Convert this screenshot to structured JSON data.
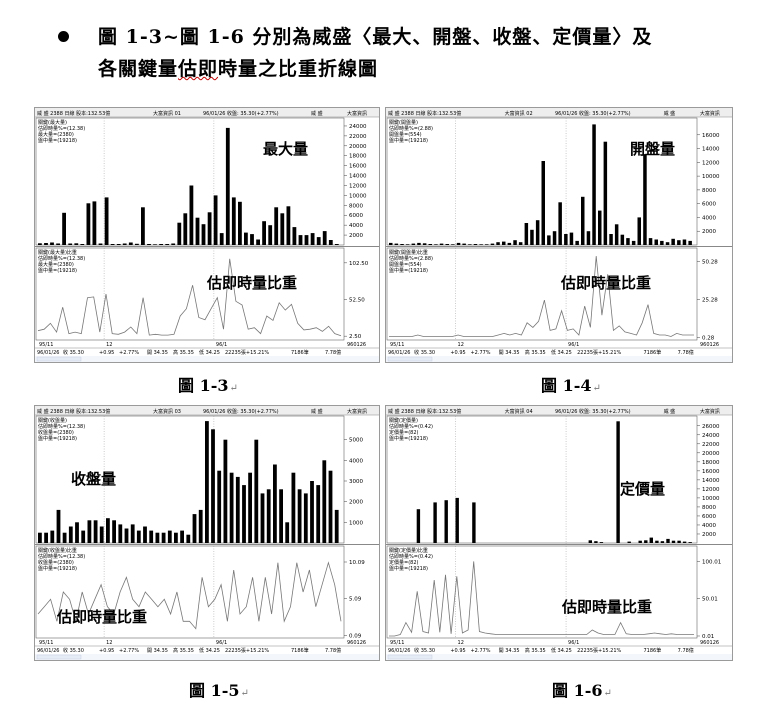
{
  "heading": {
    "line1": "圖 1-3~圖 1-6 分別為威盛〈最大、開盤、收盤、定價量〉及",
    "line2_pre": "各關鍵量",
    "line2_underlined": "估即",
    "line2_post": "時量之比重折線圖"
  },
  "panels": [
    {
      "caption": "圖 1-3",
      "topbar": [
        "威 盛 2388 日線 股本:132.53億",
        "大富資訊 01",
        "96/01/26 收盤: 35.30(+2.77%)",
        "威 盛",
        "大富資訊"
      ],
      "upper_legend": [
        "關鍵(最大量)",
        "估即時量%=(12.38)",
        "最大量=(2380)",
        "盤中量=(19218)"
      ],
      "upper_label": "最大量",
      "upper_ticks": [
        "24000",
        "22000",
        "20000",
        "18000",
        "16000",
        "14000",
        "12000",
        "10000",
        "8000",
        "6000",
        "4000",
        "2000"
      ],
      "upper_max": 25000,
      "lower_legend": [
        "關鍵(最大量)比重",
        "估即時量%=(12.38)",
        "最大量=(2380)",
        "盤中量=(19218)"
      ],
      "lower_label": "估即時量比重",
      "lower_ticks": [
        "102.50",
        "52.50",
        "2.50"
      ],
      "lower_max": 120,
      "date_labels": [
        "95/11",
        "12",
        "96/1",
        "960126"
      ],
      "bottom_bar": [
        "96/01/26",
        "收 35.30",
        "+0.95",
        "+2.77%",
        "開 34.35",
        "高 35.35",
        "低 34.25",
        "22235張+15.21%",
        "7186筆",
        "7.78億"
      ],
      "upper_bars": [
        350,
        400,
        500,
        300,
        6500,
        300,
        350,
        200,
        8400,
        8800,
        300,
        9600,
        200,
        200,
        300,
        500,
        250,
        7600,
        200,
        150,
        200,
        200,
        300,
        4500,
        6400,
        12000,
        5500,
        4200,
        6600,
        10000,
        2400,
        23600,
        9600,
        8700,
        2500,
        2200,
        1100,
        4800,
        4000,
        7600,
        6400,
        7800,
        3600,
        2000,
        2000,
        2400,
        1600,
        2800,
        1000,
        200
      ],
      "lower_series": [
        10,
        12,
        20,
        8,
        42,
        6,
        8,
        6,
        55,
        56,
        8,
        60,
        6,
        5,
        8,
        15,
        6,
        55,
        4,
        5,
        4,
        4,
        5,
        30,
        40,
        72,
        28,
        25,
        40,
        55,
        12,
        108,
        50,
        45,
        12,
        14,
        6,
        30,
        24,
        48,
        38,
        46,
        20,
        11,
        12,
        14,
        9,
        16,
        6,
        3
      ]
    },
    {
      "caption": "圖 1-4",
      "topbar": [
        "威 盛 2388 日線 股本:132.53億",
        "大富資訊 02",
        "96/01/26 收盤: 35.30(+2.77%)",
        "威 盛",
        "大富資訊"
      ],
      "upper_legend": [
        "關鍵(開盤量)",
        "估即時量%=(2.88)",
        "開盤量=(554)",
        "盤中量=(19218)"
      ],
      "upper_label": "開盤量",
      "upper_ticks": [
        "16000",
        "14000",
        "12000",
        "10000",
        "8000",
        "6000",
        "4000",
        "2000"
      ],
      "upper_max": 18000,
      "lower_legend": [
        "關鍵(開盤量)比重",
        "估即時量%=(2.88)",
        "開盤量=(554)",
        "盤中量=(19218)"
      ],
      "lower_label": "估即時量比重",
      "lower_ticks": [
        "50.28",
        "25.28",
        "0.28"
      ],
      "lower_max": 58,
      "date_labels": [
        "95/11",
        "12",
        "96/1",
        "960126"
      ],
      "bottom_bar": [
        "96/01/26",
        "收 35.30",
        "+0.95",
        "+2.77%",
        "開 34.35",
        "高 35.35",
        "低 34.25",
        "22235張+15.21%",
        "7186筆",
        "7.78億"
      ],
      "upper_bars": [
        300,
        200,
        150,
        100,
        200,
        300,
        250,
        150,
        100,
        200,
        150,
        100,
        300,
        200,
        100,
        150,
        100,
        100,
        200,
        400,
        500,
        300,
        700,
        400,
        3200,
        2200,
        3600,
        12200,
        1400,
        2000,
        6200,
        1600,
        1800,
        600,
        7000,
        2000,
        17500,
        5000,
        15000,
        1600,
        3000,
        1500,
        1000,
        600,
        4000,
        13200,
        1000,
        800,
        600,
        400,
        900,
        700,
        800,
        600
      ],
      "lower_series": [
        1,
        1,
        1,
        1,
        1,
        2,
        1,
        1,
        1,
        1,
        1,
        1,
        2,
        1,
        1,
        1,
        1,
        1,
        1,
        2,
        3,
        2,
        3,
        2,
        10,
        7,
        11,
        25,
        5,
        6,
        18,
        5,
        6,
        2,
        21,
        7,
        54,
        15,
        42,
        5,
        8,
        4,
        3,
        2,
        10,
        22,
        3,
        2,
        2,
        1,
        3,
        2,
        2,
        2
      ]
    },
    {
      "caption": "圖 1-5",
      "topbar": [
        "威 盛 2388 日線 股本:132.53億",
        "大富資訊 03",
        "96/01/26 收盤: 35.30(+2.77%)",
        "威 盛",
        "大富資訊"
      ],
      "upper_legend": [
        "關鍵(收盤量)",
        "估即時量%=(12.38)",
        "收盤量=(2380)",
        "盤中量=(19218)"
      ],
      "upper_label": "收盤量",
      "upper_ticks": [
        "5000",
        "4000",
        "3000",
        "2000",
        "1000"
      ],
      "upper_max": 6000,
      "lower_legend": [
        "關鍵(收盤量)比重",
        "估即時量%=(12.38)",
        "收盤量=(2380)",
        "盤中量=(19218)"
      ],
      "lower_label": "估即時量比重",
      "lower_ticks": [
        "10.09",
        "5.09",
        "0.09"
      ],
      "lower_max": 12,
      "date_labels": [
        "95/11",
        "12",
        "96/1",
        "960126"
      ],
      "bottom_bar": [
        "96/01/26",
        "收 35.30",
        "+0.95",
        "+2.77%",
        "開 34.35",
        "高 35.35",
        "低 34.25",
        "22235張+15.21%",
        "7186筆",
        "7.78億"
      ],
      "upper_bars": [
        500,
        500,
        600,
        1600,
        500,
        800,
        1000,
        600,
        1100,
        1100,
        800,
        1200,
        1100,
        900,
        700,
        900,
        600,
        800,
        600,
        500,
        500,
        600,
        500,
        600,
        400,
        1400,
        1600,
        5900,
        5500,
        3500,
        5000,
        3400,
        3200,
        2800,
        3400,
        5000,
        2400,
        2600,
        3800,
        2600,
        1000,
        3400,
        2600,
        2400,
        3000,
        2800,
        4000,
        3500,
        1600
      ],
      "lower_series": [
        3,
        4,
        5,
        2,
        6,
        5,
        2,
        6,
        3,
        5,
        7,
        4,
        3,
        6,
        8,
        5,
        4,
        6,
        5,
        4,
        5,
        3,
        6,
        2,
        2,
        1,
        8,
        4,
        5,
        7,
        2,
        9,
        3,
        4,
        8,
        2,
        8,
        3,
        10,
        2,
        4,
        10,
        6,
        9,
        4,
        7,
        10,
        7,
        2
      ]
    },
    {
      "caption": "圖 1-6",
      "topbar": [
        "威 盛 2388 日線 股本:132.53億",
        "大富資訊 04",
        "96/01/26 收盤: 35.30(+2.77%)",
        "威 盛",
        "大富資訊"
      ],
      "upper_legend": [
        "關鍵(定價量)",
        "估即時量%=(0.42)",
        "定價量=(82)",
        "盤中量=(19218)"
      ],
      "upper_label": "定價量",
      "upper_ticks": [
        "26000",
        "24000",
        "22000",
        "20000",
        "18000",
        "16000",
        "14000",
        "12000",
        "10000",
        "8000",
        "6000",
        "4000",
        "2000"
      ],
      "upper_max": 27500,
      "lower_legend": [
        "關鍵(定價量)比重",
        "估即時量%=(0.42)",
        "定價量=(82)",
        "盤中量=(19218)"
      ],
      "lower_label": "估即時量比重",
      "lower_ticks": [
        "100.01",
        "50.01",
        "0.01"
      ],
      "lower_max": 118,
      "date_labels": [
        "95/11",
        "12",
        "96/1",
        "960126"
      ],
      "bottom_bar": [
        "96/01/26",
        "收 35.30",
        "+0.95",
        "+2.77%",
        "開 34.35",
        "高 35.35",
        "低 34.25",
        "22235張+15.21%",
        "7186筆",
        "7.78億"
      ],
      "upper_bars": [
        0,
        0,
        0,
        0,
        0,
        7500,
        0,
        0,
        9000,
        0,
        9500,
        0,
        10000,
        0,
        0,
        9000,
        0,
        0,
        0,
        0,
        0,
        0,
        0,
        0,
        0,
        0,
        0,
        0,
        0,
        0,
        0,
        0,
        0,
        0,
        0,
        0,
        600,
        400,
        200,
        0,
        0,
        27000,
        0,
        300,
        0,
        500,
        600,
        1200,
        500,
        400,
        900,
        500,
        500,
        300,
        200
      ],
      "lower_series": [
        0,
        0,
        2,
        18,
        5,
        60,
        6,
        4,
        75,
        5,
        82,
        3,
        80,
        4,
        8,
        100,
        6,
        4,
        3,
        2,
        2,
        2,
        2,
        2,
        2,
        2,
        2,
        2,
        2,
        2,
        2,
        2,
        2,
        2,
        2,
        2,
        8,
        4,
        2,
        2,
        2,
        18,
        3,
        2,
        2,
        2,
        3,
        4,
        3,
        2,
        3,
        2,
        2,
        2,
        2
      ]
    }
  ]
}
